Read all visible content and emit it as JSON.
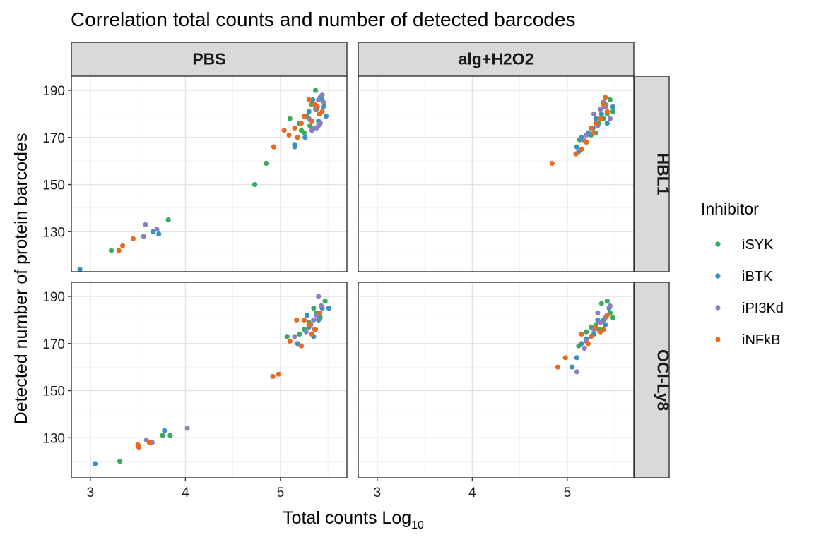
{
  "chart_data": {
    "type": "scatter",
    "title": "Correlation total counts and number of detected barcodes",
    "xlabel_main": "Total counts Log",
    "xlabel_sub": "10",
    "ylabel": "Detected number of protein barcodes",
    "xlim": [
      2.8,
      5.7
    ],
    "ylim": [
      113,
      196
    ],
    "x_ticks": [
      3,
      4,
      5
    ],
    "y_ticks": [
      130,
      150,
      170,
      190
    ],
    "grid": true,
    "legend_position": "right",
    "legend_title": "Inhibitor",
    "columns": [
      "PBS",
      "alg+H2O2"
    ],
    "rows": [
      "HBL1",
      "OCI-Ly8"
    ],
    "series": [
      {
        "name": "iSYK",
        "color": "#3aaa5c"
      },
      {
        "name": "iBTK",
        "color": "#3b8fc4"
      },
      {
        "name": "iPI3Kd",
        "color": "#8c7fbf"
      },
      {
        "name": "iNFkB",
        "color": "#ea6b1e"
      }
    ],
    "panels": [
      {
        "column": "PBS",
        "row": "HBL1",
        "points": {
          "iSYK": [
            [
              5.37,
              190
            ],
            [
              5.1,
              178
            ],
            [
              4.85,
              159
            ],
            [
              4.73,
              150
            ],
            [
              3.82,
              135
            ],
            [
              3.22,
              122
            ],
            [
              5.25,
              172
            ],
            [
              5.33,
              184
            ],
            [
              5.44,
              186
            ],
            [
              5.2,
              176
            ],
            [
              5.28,
              179
            ],
            [
              5.38,
              182
            ],
            [
              5.46,
              184
            ],
            [
              5.22,
              173
            ],
            [
              5.31,
              175
            ]
          ],
          "iBTK": [
            [
              5.48,
              179
            ],
            [
              5.15,
              167
            ],
            [
              5.15,
              166
            ],
            [
              5.26,
              170
            ],
            [
              3.72,
              129
            ],
            [
              3.66,
              130
            ],
            [
              2.89,
              114
            ],
            [
              5.34,
              186
            ],
            [
              5.42,
              187
            ],
            [
              5.3,
              181
            ],
            [
              5.4,
              177
            ],
            [
              5.45,
              183
            ]
          ],
          "iPI3Kd": [
            [
              5.44,
              188
            ],
            [
              3.58,
              133
            ],
            [
              3.7,
              131
            ],
            [
              3.56,
              128
            ],
            [
              5.35,
              174
            ],
            [
              5.38,
              174
            ],
            [
              5.4,
              175
            ],
            [
              5.33,
              173
            ],
            [
              5.42,
              176
            ],
            [
              5.3,
              178
            ],
            [
              5.37,
              182
            ],
            [
              5.4,
              186
            ],
            [
              5.45,
              185
            ]
          ],
          "iNFkB": [
            [
              5.04,
              173
            ],
            [
              5.09,
              171
            ],
            [
              5.15,
              174
            ],
            [
              5.18,
              170
            ],
            [
              4.93,
              166
            ],
            [
              3.45,
              127
            ],
            [
              3.3,
              122
            ],
            [
              3.34,
              124
            ],
            [
              5.3,
              186
            ],
            [
              5.36,
              184
            ],
            [
              5.41,
              180
            ],
            [
              5.25,
              179
            ],
            [
              5.33,
              177
            ],
            [
              5.39,
              183
            ],
            [
              5.44,
              181
            ],
            [
              5.22,
              176
            ]
          ]
        }
      },
      {
        "column": "alg+H2O2",
        "row": "HBL1",
        "points": {
          "iSYK": [
            [
              5.45,
              186
            ],
            [
              5.38,
              178
            ],
            [
              5.3,
              172
            ],
            [
              5.42,
              180
            ],
            [
              5.2,
              168
            ],
            [
              5.33,
              176
            ],
            [
              5.25,
              171
            ],
            [
              5.4,
              184
            ],
            [
              5.13,
              169
            ],
            [
              5.48,
              181
            ]
          ],
          "iBTK": [
            [
              5.48,
              183
            ],
            [
              5.1,
              166
            ],
            [
              5.15,
              170
            ],
            [
              5.3,
              178
            ],
            [
              5.22,
              172
            ],
            [
              5.36,
              180
            ],
            [
              5.42,
              176
            ],
            [
              5.27,
              174
            ],
            [
              5.12,
              164
            ]
          ],
          "iPI3Kd": [
            [
              5.35,
              182
            ],
            [
              5.28,
              180
            ],
            [
              5.4,
              183
            ],
            [
              5.32,
              175
            ],
            [
              5.2,
              171
            ],
            [
              5.45,
              178
            ],
            [
              5.38,
              185
            ],
            [
              5.17,
              169
            ]
          ],
          "iNFkB": [
            [
              4.84,
              159
            ],
            [
              5.09,
              163
            ],
            [
              5.15,
              165
            ],
            [
              5.2,
              168
            ],
            [
              5.4,
              187
            ],
            [
              5.3,
              176
            ],
            [
              5.35,
              178
            ],
            [
              5.25,
              174
            ],
            [
              5.42,
              181
            ],
            [
              5.28,
              172
            ],
            [
              5.38,
              184
            ]
          ]
        }
      },
      {
        "column": "PBS",
        "row": "OCI-Ly8",
        "points": {
          "iSYK": [
            [
              5.47,
              188
            ],
            [
              5.07,
              173
            ],
            [
              3.76,
              131
            ],
            [
              3.84,
              131
            ],
            [
              3.31,
              120
            ],
            [
              5.3,
              179
            ],
            [
              5.38,
              183
            ],
            [
              5.42,
              181
            ],
            [
              5.25,
              176
            ],
            [
              5.35,
              185
            ],
            [
              5.2,
              174
            ]
          ],
          "iBTK": [
            [
              5.44,
              185
            ],
            [
              5.51,
              185
            ],
            [
              5.18,
              170
            ],
            [
              5.35,
              173
            ],
            [
              3.78,
              133
            ],
            [
              3.05,
              119
            ],
            [
              5.3,
              177
            ],
            [
              5.4,
              180
            ],
            [
              5.37,
              176
            ],
            [
              5.28,
              182
            ]
          ],
          "iPI3Kd": [
            [
              5.4,
              190
            ],
            [
              4.02,
              134
            ],
            [
              3.59,
              129
            ],
            [
              3.65,
              128
            ],
            [
              5.15,
              173
            ],
            [
              5.32,
              178
            ],
            [
              5.38,
              182
            ],
            [
              5.43,
              186
            ],
            [
              5.27,
              175
            ],
            [
              5.35,
              180
            ]
          ],
          "iNFkB": [
            [
              4.98,
              157
            ],
            [
              4.92,
              156
            ],
            [
              5.1,
              171
            ],
            [
              5.17,
              180
            ],
            [
              5.22,
              169
            ],
            [
              3.5,
              127
            ],
            [
              3.51,
              126
            ],
            [
              3.62,
              128
            ],
            [
              5.3,
              178
            ],
            [
              5.36,
              176
            ],
            [
              5.41,
              183
            ],
            [
              5.25,
              180
            ],
            [
              5.33,
              174
            ]
          ]
        }
      },
      {
        "column": "alg+H2O2",
        "row": "OCI-Ly8",
        "points": {
          "iSYK": [
            [
              5.42,
              188
            ],
            [
              5.36,
              187
            ],
            [
              5.12,
              169
            ],
            [
              5.3,
              178
            ],
            [
              5.45,
              183
            ],
            [
              5.2,
              175
            ],
            [
              5.38,
              180
            ],
            [
              5.48,
              181
            ],
            [
              5.25,
              177
            ],
            [
              5.33,
              176
            ]
          ],
          "iBTK": [
            [
              5.1,
              164
            ],
            [
              5.05,
              160
            ],
            [
              5.2,
              172
            ],
            [
              5.32,
              180
            ],
            [
              5.4,
              178
            ],
            [
              5.28,
              174
            ],
            [
              5.44,
              185
            ],
            [
              5.15,
              170
            ]
          ],
          "iPI3Kd": [
            [
              5.1,
              158
            ],
            [
              5.2,
              171
            ],
            [
              5.35,
              179
            ],
            [
              5.28,
              176
            ],
            [
              5.4,
              181
            ],
            [
              5.45,
              186
            ],
            [
              5.32,
              183
            ],
            [
              5.18,
              168
            ]
          ],
          "iNFkB": [
            [
              4.98,
              164
            ],
            [
              4.9,
              160
            ],
            [
              5.15,
              174
            ],
            [
              5.22,
              170
            ],
            [
              5.3,
              177
            ],
            [
              5.38,
              176
            ],
            [
              5.42,
              182
            ],
            [
              5.25,
              173
            ],
            [
              5.35,
              175
            ]
          ]
        }
      }
    ]
  }
}
